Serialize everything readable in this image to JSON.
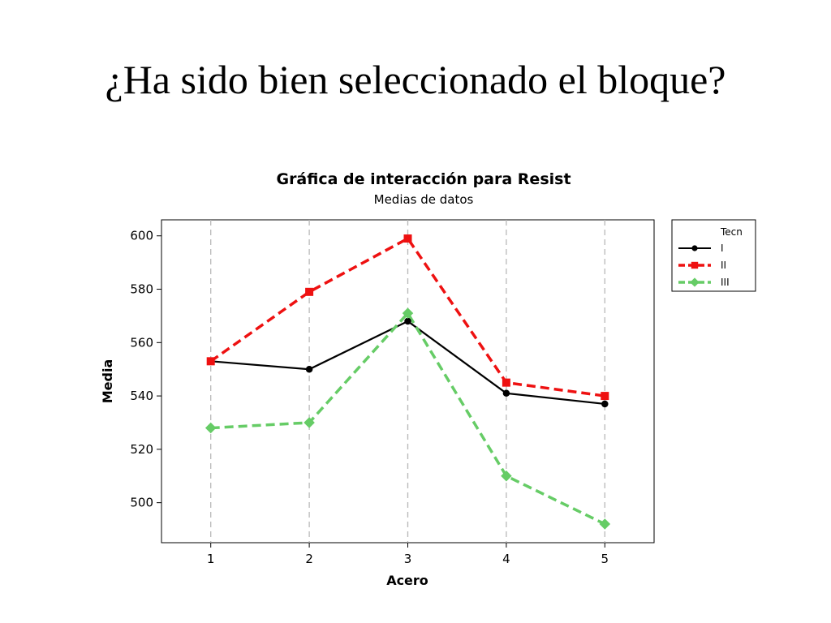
{
  "slide": {
    "title": "¿Ha sido bien seleccionado el bloque?"
  },
  "chart_data": {
    "type": "line",
    "title": "Gráfica de interacción para Resist",
    "subtitle": "Medias de datos",
    "xlabel": "Acero",
    "ylabel": "Media",
    "categories": [
      "1",
      "2",
      "3",
      "4",
      "5"
    ],
    "x": [
      1,
      2,
      3,
      4,
      5
    ],
    "yticks": [
      500,
      520,
      540,
      560,
      580,
      600
    ],
    "ylim": [
      485,
      606
    ],
    "xlim": [
      0.5,
      5.5
    ],
    "grid": "vertical dashed",
    "legend": {
      "title": "Tecn",
      "placement": "right"
    },
    "series": [
      {
        "name": "I",
        "values": [
          553,
          550,
          568,
          541,
          537
        ],
        "color": "#000000",
        "marker": "circle",
        "dash": "solid"
      },
      {
        "name": "II",
        "values": [
          553,
          579,
          599,
          545,
          540
        ],
        "color": "#ee1111",
        "marker": "square",
        "dash": "dashed"
      },
      {
        "name": "III",
        "values": [
          528,
          530,
          571,
          510,
          492
        ],
        "color": "#66cc66",
        "marker": "diamond",
        "dash": "dashed"
      }
    ]
  }
}
